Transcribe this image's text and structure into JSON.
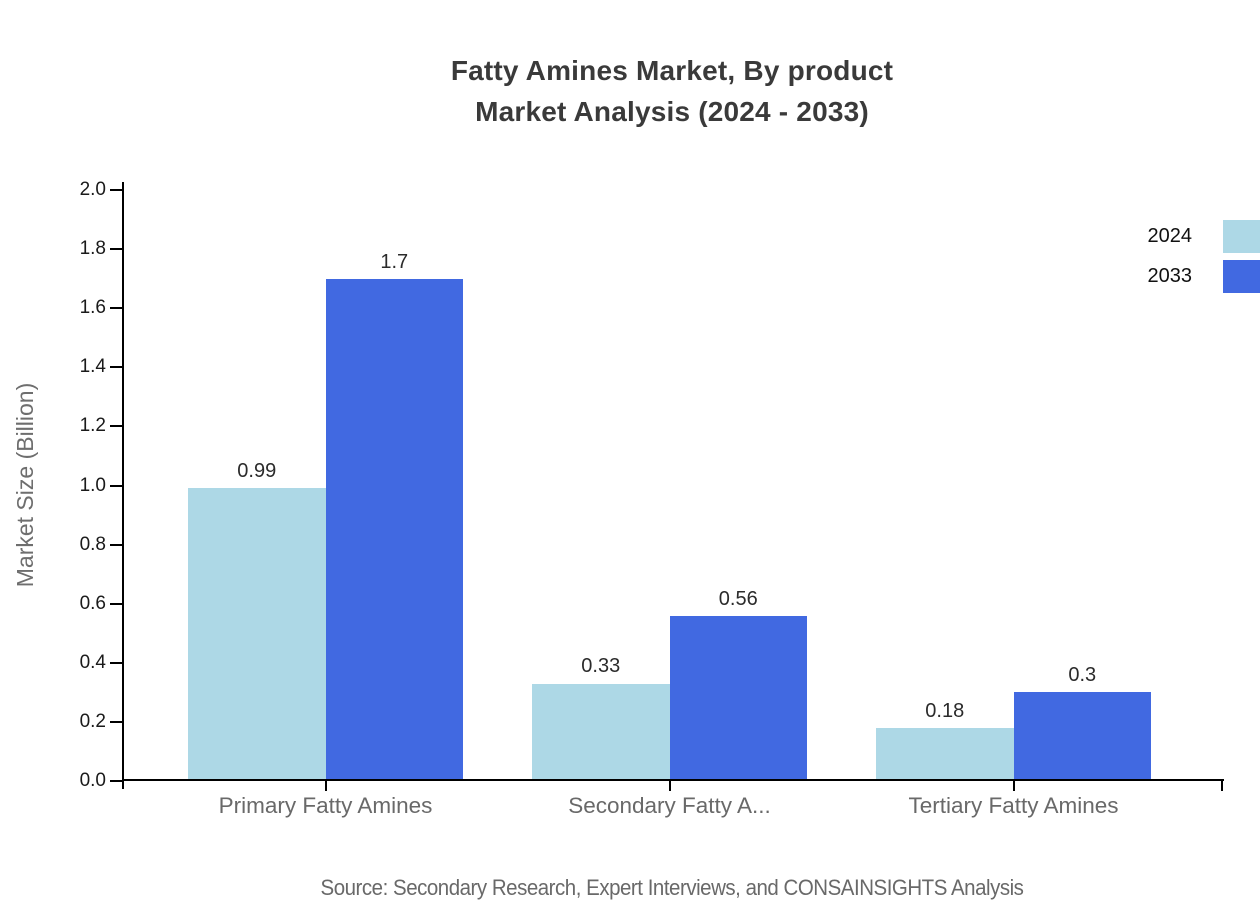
{
  "page": {
    "background": "#ffffff"
  },
  "title": {
    "line1": "Fatty Amines Market, By product",
    "line2": "Market Analysis (2024 - 2033)"
  },
  "legend": {
    "items": [
      {
        "label": "2024",
        "color": "#ADD8E6"
      },
      {
        "label": "2033",
        "color": "#4169E1"
      }
    ]
  },
  "source_note": "Source: Secondary Research, Expert Interviews, and CONSAINSIGHTS Analysis",
  "chart_data": {
    "type": "bar",
    "title": "Fatty Amines Market, By product Market Analysis (2024 - 2033)",
    "categories": [
      "Primary Fatty Amines",
      "Secondary Fatty A...",
      "Tertiary Fatty Amines"
    ],
    "series": [
      {
        "name": "2024",
        "color": "#ADD8E6",
        "values": [
          0.99,
          0.33,
          0.18
        ]
      },
      {
        "name": "2033",
        "color": "#4169E1",
        "values": [
          1.7,
          0.56,
          0.3
        ]
      }
    ],
    "xlabel": "",
    "ylabel": "Market Size (Billion)",
    "ylim": [
      0,
      2.0
    ],
    "ytick_step": 0.2,
    "ytick_format_decimals": 1,
    "grid": false,
    "legend_position": "top-right",
    "value_labels_shown": true,
    "axis_color": "#000000"
  }
}
